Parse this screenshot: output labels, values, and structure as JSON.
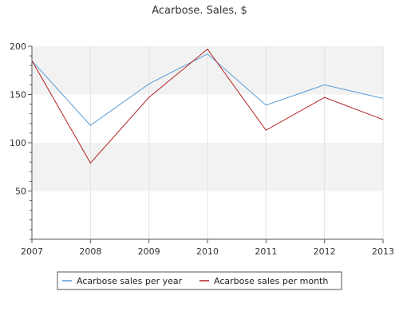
{
  "chart_data": {
    "type": "line",
    "title": "Acarbose. Sales, $",
    "xlabel": "",
    "ylabel": "",
    "x": [
      "2007",
      "2008",
      "2009",
      "2010",
      "2011",
      "2012",
      "2013"
    ],
    "y_ticks": [
      50,
      100,
      150,
      200
    ],
    "ylim": [
      0,
      200
    ],
    "grid": true,
    "legend_position": "bottom",
    "series": [
      {
        "name": "Acarbose sales per year",
        "color": "#5b9bd5",
        "values": [
          185,
          118,
          161,
          192,
          139,
          160,
          146
        ]
      },
      {
        "name": "Acarbose sales per month",
        "color": "#b22222",
        "values": [
          185,
          79,
          147,
          197,
          113,
          147,
          124
        ]
      }
    ]
  }
}
